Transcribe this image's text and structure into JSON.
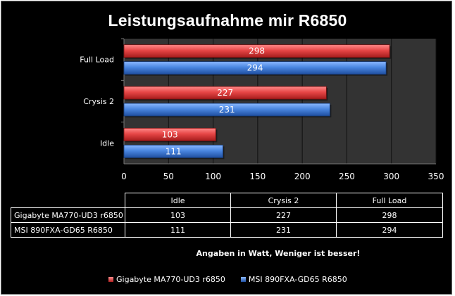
{
  "chart_data": {
    "type": "bar",
    "orientation": "horizontal",
    "title": "Leistungsaufnahme mir R6850",
    "categories": [
      "Idle",
      "Crysis 2",
      "Full Load"
    ],
    "series": [
      {
        "name": "Gigabyte MA770-UD3 r6850",
        "values": [
          103,
          227,
          298
        ],
        "color": "#e64646"
      },
      {
        "name": "MSI 890FXA-GD65 R6850",
        "values": [
          111,
          231,
          294
        ],
        "color": "#4a86e0"
      }
    ],
    "xlim": [
      0,
      350
    ],
    "x_ticks": [
      "0",
      "50",
      "100",
      "150",
      "200",
      "250",
      "300",
      "350"
    ],
    "grid": true,
    "plot_background": "#333333",
    "legend_position": "bottom",
    "data_table": {
      "headers": [
        "Idle",
        "Crysis 2",
        "Full Load"
      ],
      "rows": [
        {
          "label": "Gigabyte MA770-UD3 r6850",
          "values": [
            "103",
            "227",
            "298"
          ]
        },
        {
          "label": "MSI 890FXA-GD65 R6850",
          "values": [
            "111",
            "231",
            "294"
          ]
        }
      ]
    },
    "note": "Angaben in Watt, Weniger ist besser!"
  }
}
